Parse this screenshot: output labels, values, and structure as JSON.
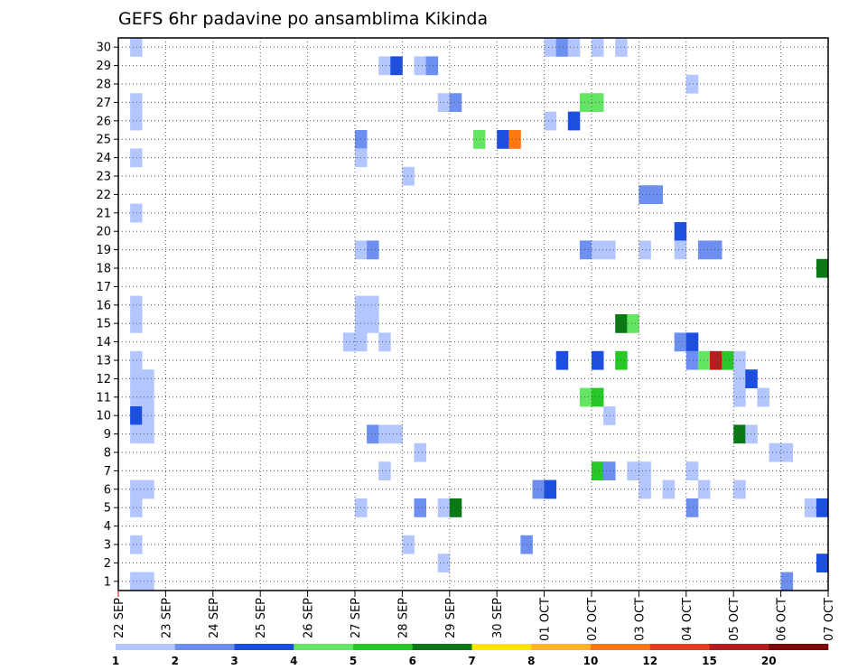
{
  "chart_data": {
    "type": "heatmap",
    "title": "GEFS 6hr padavine po ansamblima Kikinda",
    "xlabel": "",
    "ylabel": "",
    "x_tick_labels": [
      "22 SEP",
      "23 SEP",
      "24 SEP",
      "25 SEP",
      "26 SEP",
      "27 SEP",
      "28 SEP",
      "29 SEP",
      "30 SEP",
      "01 OCT",
      "02 OCT",
      "03 OCT",
      "04 OCT",
      "05 OCT",
      "06 OCT",
      "07 OCT"
    ],
    "x_unit": "6-hour step",
    "xlim_steps": [
      0,
      60
    ],
    "y_tick_labels": [
      "1",
      "2",
      "3",
      "4",
      "5",
      "6",
      "7",
      "8",
      "9",
      "10",
      "11",
      "12",
      "13",
      "14",
      "15",
      "16",
      "17",
      "18",
      "19",
      "20",
      "21",
      "22",
      "23",
      "24",
      "25",
      "26",
      "27",
      "28",
      "29",
      "30"
    ],
    "ylim": [
      0.5,
      30.5
    ],
    "grid": true,
    "legend": {
      "placement": "bottom",
      "thresholds": [
        "1",
        "2",
        "3",
        "4",
        "5",
        "6",
        "7",
        "8",
        "10",
        "12",
        "15",
        "20"
      ],
      "colors": [
        "#b4c6ff",
        "#6c8ff0",
        "#1c4fe0",
        "#64e664",
        "#28c828",
        "#0a7814",
        "#ffe600",
        "#ffb428",
        "#ff7814",
        "#e63c1e",
        "#b41e1e",
        "#7a0a0a"
      ]
    },
    "cells": [
      [
        1,
        30,
        1
      ],
      [
        1,
        27,
        1
      ],
      [
        1,
        26,
        1
      ],
      [
        1,
        24,
        1
      ],
      [
        1,
        21,
        1
      ],
      [
        1,
        16,
        1
      ],
      [
        1,
        15,
        1
      ],
      [
        1,
        13,
        1
      ],
      [
        1,
        12,
        1
      ],
      [
        1,
        11,
        1
      ],
      [
        1,
        10,
        3
      ],
      [
        1,
        9,
        1
      ],
      [
        1,
        6,
        1
      ],
      [
        1,
        5,
        1
      ],
      [
        1,
        3,
        1
      ],
      [
        1,
        1,
        1
      ],
      [
        2,
        12,
        1
      ],
      [
        2,
        11,
        1
      ],
      [
        2,
        10,
        1
      ],
      [
        2,
        9,
        1
      ],
      [
        2,
        6,
        1
      ],
      [
        2,
        1,
        1
      ],
      [
        19,
        14,
        1
      ],
      [
        20,
        14,
        1
      ],
      [
        20,
        25,
        2
      ],
      [
        20,
        24,
        1
      ],
      [
        20,
        19,
        1
      ],
      [
        20,
        16,
        1
      ],
      [
        20,
        15,
        1
      ],
      [
        20,
        5,
        1
      ],
      [
        21,
        19,
        2
      ],
      [
        21,
        16,
        1
      ],
      [
        21,
        15,
        1
      ],
      [
        21,
        9,
        2
      ],
      [
        22,
        29,
        1
      ],
      [
        23,
        29,
        3
      ],
      [
        22,
        14,
        1
      ],
      [
        22,
        9,
        1
      ],
      [
        23,
        9,
        1
      ],
      [
        22,
        7,
        1
      ],
      [
        24,
        23,
        1
      ],
      [
        24,
        3,
        1
      ],
      [
        25,
        29,
        1
      ],
      [
        25,
        8,
        1
      ],
      [
        25,
        5,
        2
      ],
      [
        26,
        29,
        2
      ],
      [
        27,
        27,
        1
      ],
      [
        28,
        27,
        2
      ],
      [
        27,
        5,
        1
      ],
      [
        28,
        5,
        6
      ],
      [
        27,
        2,
        1
      ],
      [
        30,
        25,
        4
      ],
      [
        32,
        25,
        3
      ],
      [
        33,
        25,
        9
      ],
      [
        34,
        3,
        2
      ],
      [
        36,
        30,
        1
      ],
      [
        37,
        30,
        2
      ],
      [
        38,
        30,
        1
      ],
      [
        36,
        26,
        1
      ],
      [
        35,
        6,
        2
      ],
      [
        36,
        6,
        3
      ],
      [
        37,
        13,
        3
      ],
      [
        38,
        26,
        3
      ],
      [
        39,
        27,
        4
      ],
      [
        40,
        27,
        4
      ],
      [
        39,
        19,
        2
      ],
      [
        40,
        19,
        1
      ],
      [
        41,
        19,
        1
      ],
      [
        39,
        11,
        4
      ],
      [
        40,
        11,
        5
      ],
      [
        40,
        13,
        3
      ],
      [
        40,
        7,
        5
      ],
      [
        41,
        7,
        2
      ],
      [
        41,
        10,
        1
      ],
      [
        40,
        30,
        1
      ],
      [
        42,
        30,
        1
      ],
      [
        42,
        15,
        6
      ],
      [
        43,
        15,
        4
      ],
      [
        42,
        13,
        5
      ],
      [
        43,
        7,
        1
      ],
      [
        44,
        7,
        1
      ],
      [
        44,
        22,
        2
      ],
      [
        45,
        22,
        2
      ],
      [
        44,
        19,
        1
      ],
      [
        44,
        6,
        1
      ],
      [
        46,
        6,
        1
      ],
      [
        47,
        20,
        3
      ],
      [
        47,
        19,
        1
      ],
      [
        47,
        14,
        2
      ],
      [
        48,
        14,
        3
      ],
      [
        48,
        13,
        2
      ],
      [
        48,
        28,
        1
      ],
      [
        48,
        7,
        1
      ],
      [
        48,
        5,
        2
      ],
      [
        49,
        19,
        2
      ],
      [
        50,
        19,
        2
      ],
      [
        49,
        13,
        4
      ],
      [
        49,
        6,
        1
      ],
      [
        50,
        13,
        11
      ],
      [
        51,
        13,
        5
      ],
      [
        52,
        13,
        1
      ],
      [
        52,
        12,
        1
      ],
      [
        52,
        11,
        1
      ],
      [
        52,
        9,
        6
      ],
      [
        52,
        6,
        1
      ],
      [
        53,
        12,
        3
      ],
      [
        53,
        9,
        1
      ],
      [
        54,
        11,
        1
      ],
      [
        55,
        8,
        1
      ],
      [
        56,
        8,
        1
      ],
      [
        56,
        1,
        2
      ],
      [
        58,
        5,
        1
      ],
      [
        59,
        5,
        3
      ],
      [
        59,
        18,
        6
      ],
      [
        59,
        2,
        3
      ]
    ]
  }
}
